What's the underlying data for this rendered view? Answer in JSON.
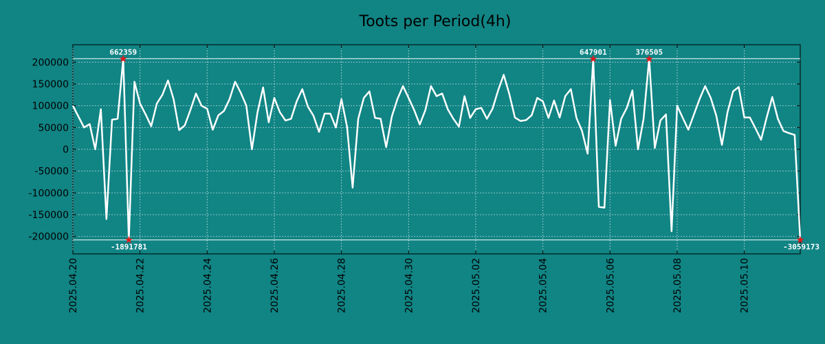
{
  "chart_data": {
    "type": "line",
    "title": "Toots per Period(4h)",
    "xlabel": "",
    "ylabel": "",
    "ylim": [
      -240000,
      240000
    ],
    "yticks": [
      200000,
      150000,
      100000,
      50000,
      0,
      -50000,
      -100000,
      -150000,
      -200000
    ],
    "ytick_labels": [
      "200000",
      "150000",
      "100000",
      "50000",
      "0",
      "-50000",
      "-100000",
      "-150000",
      "-200000"
    ],
    "x_start": "2025.04.20",
    "x_end": "2025.05.11",
    "x_period_hours": 4,
    "xtick_labels": [
      "2025.04.20",
      "2025.04.22",
      "2025.04.24",
      "2025.04.26",
      "2025.04.28",
      "2025.04.30",
      "2025.05.02",
      "2025.05.04",
      "2025.05.06",
      "2025.05.08",
      "2025.05.10"
    ],
    "xtick_positions": [
      0,
      12,
      24,
      36,
      48,
      60,
      72,
      84,
      96,
      108,
      120
    ],
    "clip_lines": {
      "upper": 208000,
      "lower": -208000
    },
    "grid": true,
    "series": [
      {
        "name": "Toots",
        "color": "#ffffff",
        "values": [
          100000,
          75000,
          50000,
          58000,
          0,
          92000,
          -160000,
          68000,
          70000,
          208000,
          -208000,
          155000,
          105000,
          80000,
          53000,
          105000,
          125000,
          158000,
          115000,
          44000,
          55000,
          90000,
          128000,
          100000,
          93000,
          45000,
          78000,
          88000,
          115000,
          155000,
          130000,
          100000,
          0,
          85000,
          142000,
          62000,
          118000,
          85000,
          66000,
          70000,
          110000,
          138000,
          98000,
          77000,
          40000,
          82000,
          82000,
          50000,
          115000,
          52000,
          -88000,
          70000,
          118000,
          133000,
          72000,
          70000,
          5000,
          75000,
          115000,
          145000,
          118000,
          90000,
          57000,
          90000,
          145000,
          122000,
          128000,
          92000,
          70000,
          52000,
          122000,
          72000,
          92000,
          95000,
          70000,
          93000,
          135000,
          171000,
          127000,
          73000,
          65000,
          67000,
          78000,
          118000,
          110000,
          72000,
          112000,
          73000,
          122000,
          138000,
          72000,
          42000,
          -10000,
          208000,
          -132000,
          -134000,
          113000,
          8000,
          70000,
          95000,
          135000,
          0,
          70000,
          208000,
          3000,
          66000,
          80000,
          -188000,
          100000,
          72000,
          45000,
          80000,
          115000,
          145000,
          118000,
          77000,
          10000,
          85000,
          133000,
          143000,
          73000,
          73000,
          48000,
          22000,
          73000,
          120000,
          70000,
          42000,
          37000,
          33000,
          -208000
        ]
      }
    ],
    "annotations": [
      {
        "index": 9,
        "value": 208000,
        "label": "662359",
        "pos": "above"
      },
      {
        "index": 10,
        "value": -208000,
        "label": "-1891781",
        "pos": "below"
      },
      {
        "index": 93,
        "value": 208000,
        "label": "647901",
        "pos": "above"
      },
      {
        "index": 103,
        "value": 208000,
        "label": "376505",
        "pos": "above"
      },
      {
        "index": 130,
        "value": -208000,
        "label": "-3059173",
        "pos": "below"
      }
    ]
  }
}
